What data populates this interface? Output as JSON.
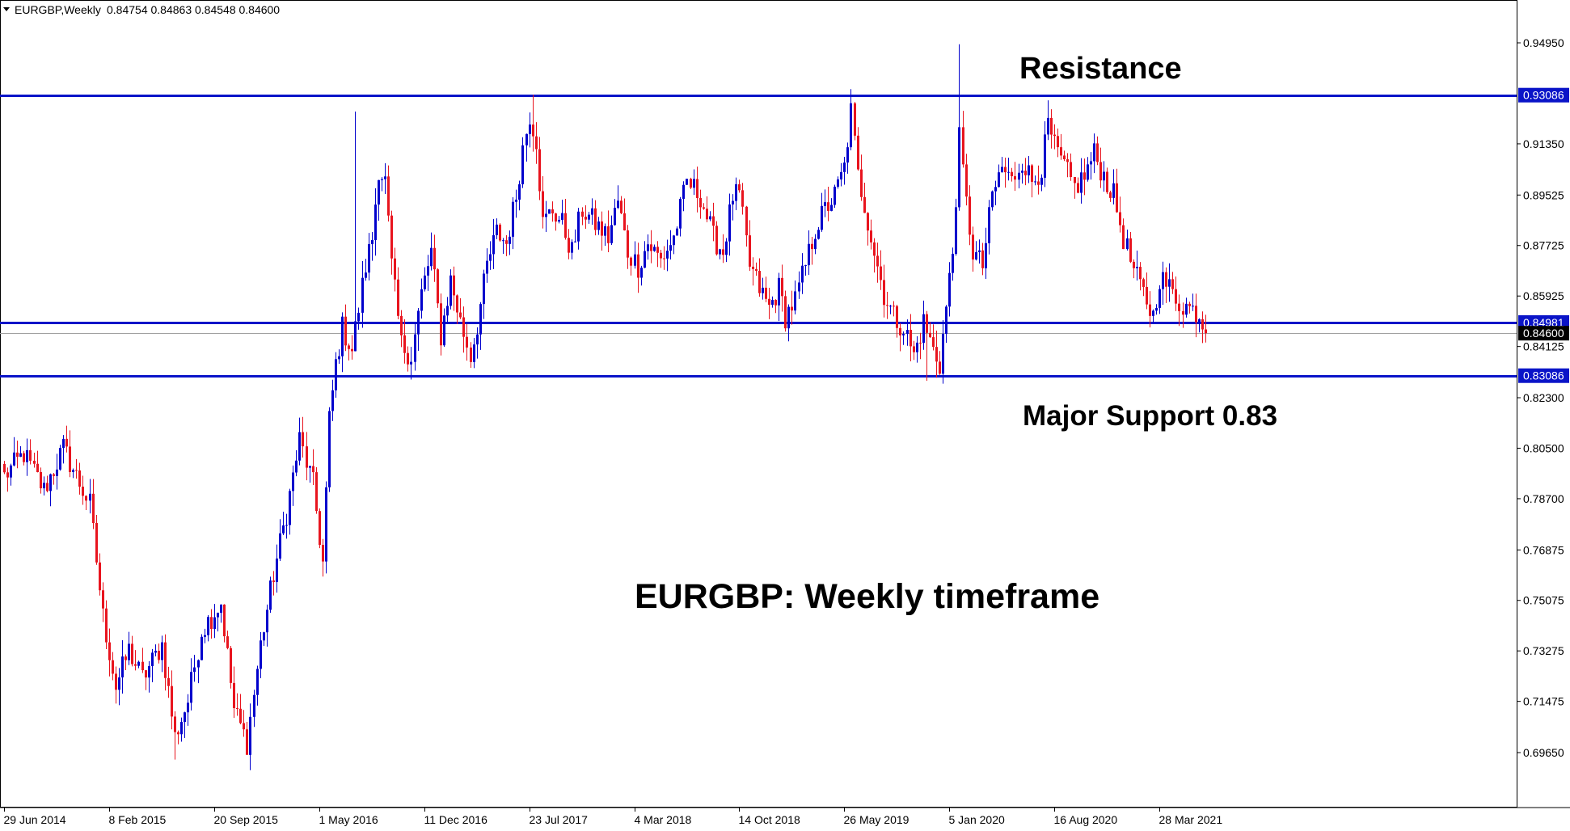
{
  "header": {
    "symbol_tf": "EURGBP,Weekly",
    "ohlc": "0.84754 0.84863 0.84548 0.84600",
    "menu_icon": "triangle-down-icon"
  },
  "annotations": {
    "resistance": "Resistance",
    "support": "Major Support 0.83",
    "caption": "EURGBP: Weekly timeframe"
  },
  "colors": {
    "background": "#ffffff",
    "up_candle": "#0000cc",
    "down_candle": "#e8141e",
    "level_line": "#0a14c8",
    "label_bg": "#0a14c8",
    "current_price_bg": "#000000",
    "current_price_line": "#a0a0a0",
    "axis": "#000000"
  },
  "chart_data": {
    "type": "candlestick",
    "symbol": "EURGBP",
    "timeframe": "Weekly",
    "ylim": [
      0.6875,
      0.9575
    ],
    "y_ticks": [
      {
        "label": "0.94950",
        "value": 0.9495
      },
      {
        "label": "0.91350",
        "value": 0.9135
      },
      {
        "label": "0.89525",
        "value": 0.89525
      },
      {
        "label": "0.87725",
        "value": 0.87725
      },
      {
        "label": "0.85925",
        "value": 0.85925
      },
      {
        "label": "0.84125",
        "value": 0.84125
      },
      {
        "label": "0.82300",
        "value": 0.823
      },
      {
        "label": "0.80500",
        "value": 0.805
      },
      {
        "label": "0.78700",
        "value": 0.787
      },
      {
        "label": "0.76875",
        "value": 0.76875
      },
      {
        "label": "0.75075",
        "value": 0.75075
      },
      {
        "label": "0.73275",
        "value": 0.73275
      },
      {
        "label": "0.71475",
        "value": 0.71475
      },
      {
        "label": "0.69650",
        "value": 0.6965
      }
    ],
    "x_ticks": [
      {
        "label": "29 Jun 2014",
        "index": 0
      },
      {
        "label": "8 Feb 2015",
        "index": 32
      },
      {
        "label": "20 Sep 2015",
        "index": 64
      },
      {
        "label": "1 May 2016",
        "index": 96
      },
      {
        "label": "11 Dec 2016",
        "index": 128
      },
      {
        "label": "23 Jul 2017",
        "index": 160
      },
      {
        "label": "4 Mar 2018",
        "index": 192
      },
      {
        "label": "14 Oct 2018",
        "index": 224
      },
      {
        "label": "26 May 2019",
        "index": 256
      },
      {
        "label": "5 Jan 2020",
        "index": 288
      },
      {
        "label": "16 Aug 2020",
        "index": 320
      },
      {
        "label": "28 Mar 2021",
        "index": 352
      }
    ],
    "horizontal_levels": [
      {
        "label": "0.93086",
        "value": 0.93086
      },
      {
        "label": "0.84981",
        "value": 0.84981
      },
      {
        "label": "0.83086",
        "value": 0.83086
      }
    ],
    "current_price": {
      "label": "0.84600",
      "value": 0.846
    },
    "anchors": [
      [
        0,
        0.795
      ],
      [
        6,
        0.803
      ],
      [
        12,
        0.79
      ],
      [
        18,
        0.805
      ],
      [
        26,
        0.785
      ],
      [
        30,
        0.745
      ],
      [
        34,
        0.72
      ],
      [
        38,
        0.733
      ],
      [
        42,
        0.723
      ],
      [
        48,
        0.735
      ],
      [
        52,
        0.702
      ],
      [
        56,
        0.715
      ],
      [
        60,
        0.74
      ],
      [
        66,
        0.75
      ],
      [
        70,
        0.712
      ],
      [
        74,
        0.7
      ],
      [
        78,
        0.735
      ],
      [
        82,
        0.76
      ],
      [
        86,
        0.782
      ],
      [
        90,
        0.808
      ],
      [
        94,
        0.792
      ],
      [
        97,
        0.764
      ],
      [
        99,
        0.815
      ],
      [
        101,
        0.835
      ],
      [
        103,
        0.848
      ],
      [
        106,
        0.84
      ],
      [
        110,
        0.87
      ],
      [
        112,
        0.88
      ],
      [
        114,
        0.905
      ],
      [
        116,
        0.9
      ],
      [
        118,
        0.87
      ],
      [
        121,
        0.842
      ],
      [
        124,
        0.838
      ],
      [
        127,
        0.86
      ],
      [
        130,
        0.875
      ],
      [
        133,
        0.845
      ],
      [
        136,
        0.865
      ],
      [
        139,
        0.85
      ],
      [
        142,
        0.838
      ],
      [
        144,
        0.849
      ],
      [
        147,
        0.87
      ],
      [
        150,
        0.882
      ],
      [
        153,
        0.878
      ],
      [
        156,
        0.895
      ],
      [
        158,
        0.912
      ],
      [
        160,
        0.924
      ],
      [
        162,
        0.915
      ],
      [
        164,
        0.885
      ],
      [
        167,
        0.89
      ],
      [
        170,
        0.885
      ],
      [
        173,
        0.875
      ],
      [
        176,
        0.89
      ],
      [
        180,
        0.885
      ],
      [
        184,
        0.88
      ],
      [
        187,
        0.893
      ],
      [
        190,
        0.875
      ],
      [
        193,
        0.87
      ],
      [
        196,
        0.878
      ],
      [
        200,
        0.872
      ],
      [
        204,
        0.88
      ],
      [
        208,
        0.9
      ],
      [
        212,
        0.895
      ],
      [
        216,
        0.88
      ],
      [
        219,
        0.875
      ],
      [
        222,
        0.895
      ],
      [
        224,
        0.895
      ],
      [
        227,
        0.87
      ],
      [
        230,
        0.862
      ],
      [
        233,
        0.855
      ],
      [
        236,
        0.862
      ],
      [
        238,
        0.852
      ],
      [
        241,
        0.858
      ],
      [
        244,
        0.87
      ],
      [
        247,
        0.883
      ],
      [
        250,
        0.89
      ],
      [
        253,
        0.895
      ],
      [
        256,
        0.905
      ],
      [
        258,
        0.925
      ],
      [
        260,
        0.902
      ],
      [
        262,
        0.892
      ],
      [
        265,
        0.875
      ],
      [
        268,
        0.86
      ],
      [
        271,
        0.852
      ],
      [
        274,
        0.848
      ],
      [
        277,
        0.838
      ],
      [
        280,
        0.85
      ],
      [
        283,
        0.84
      ],
      [
        285,
        0.835
      ],
      [
        287,
        0.855
      ],
      [
        289,
        0.875
      ],
      [
        291,
        0.915
      ],
      [
        293,
        0.892
      ],
      [
        295,
        0.875
      ],
      [
        298,
        0.87
      ],
      [
        301,
        0.895
      ],
      [
        304,
        0.905
      ],
      [
        307,
        0.9
      ],
      [
        310,
        0.908
      ],
      [
        313,
        0.9
      ],
      [
        316,
        0.905
      ],
      [
        318,
        0.92
      ],
      [
        320,
        0.912
      ],
      [
        323,
        0.905
      ],
      [
        326,
        0.898
      ],
      [
        329,
        0.902
      ],
      [
        332,
        0.91
      ],
      [
        335,
        0.902
      ],
      [
        338,
        0.895
      ],
      [
        341,
        0.88
      ],
      [
        344,
        0.868
      ],
      [
        347,
        0.86
      ],
      [
        350,
        0.852
      ],
      [
        352,
        0.866
      ],
      [
        355,
        0.862
      ],
      [
        358,
        0.857
      ],
      [
        361,
        0.855
      ],
      [
        364,
        0.853
      ],
      [
        366,
        0.846
      ]
    ],
    "extremes": [
      {
        "index": 52,
        "low": 0.694
      },
      {
        "index": 74,
        "low": 0.696
      },
      {
        "index": 107,
        "high": 0.925
      },
      {
        "index": 161,
        "high": 0.931
      },
      {
        "index": 258,
        "high": 0.933
      },
      {
        "index": 281,
        "low": 0.829
      },
      {
        "index": 286,
        "low": 0.828
      },
      {
        "index": 291,
        "high": 0.949
      },
      {
        "index": 318,
        "high": 0.929
      }
    ]
  }
}
